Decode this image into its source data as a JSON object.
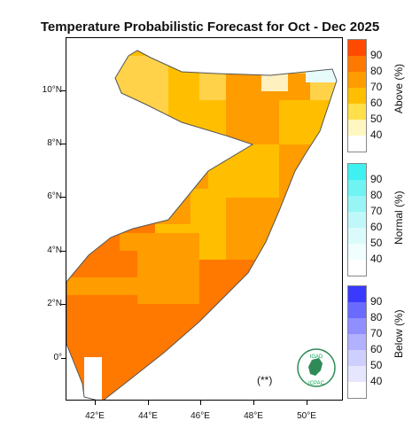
{
  "title": "Temperature Probabilistic Forecast for Oct - Dec 2025",
  "y_axis_labels": [
    "10°N",
    "8°N",
    "6°N",
    "4°N",
    "2°N",
    "0°"
  ],
  "x_axis_labels": [
    "42°E",
    "44°E",
    "46°E",
    "48°E",
    "50°E"
  ],
  "legends": {
    "above": {
      "title": "Above (%)",
      "levels": [
        "90",
        "80",
        "70",
        "60",
        "50",
        "40"
      ],
      "colors": [
        "#ff4a00",
        "#ff7800",
        "#ff9c00",
        "#ffbf00",
        "#ffe04a",
        "#fff7bf"
      ]
    },
    "normal": {
      "title": "Normal (%)",
      "levels": [
        "90",
        "80",
        "70",
        "60",
        "50",
        "40"
      ],
      "colors": [
        "#3ef0f0",
        "#6ff3f3",
        "#98f5f5",
        "#bff8f8",
        "#dbfbfb",
        "#f0fefe"
      ]
    },
    "below": {
      "title": "Below (%)",
      "levels": [
        "90",
        "80",
        "70",
        "60",
        "50",
        "40"
      ],
      "colors": [
        "#3a3aff",
        "#6a6aff",
        "#8f8fff",
        "#b1b1ff",
        "#cfcfff",
        "#e6e6ff"
      ]
    }
  },
  "note": "(**)",
  "logo": {
    "top_text": "IGAD",
    "bottom_text": "ICPAC"
  }
}
